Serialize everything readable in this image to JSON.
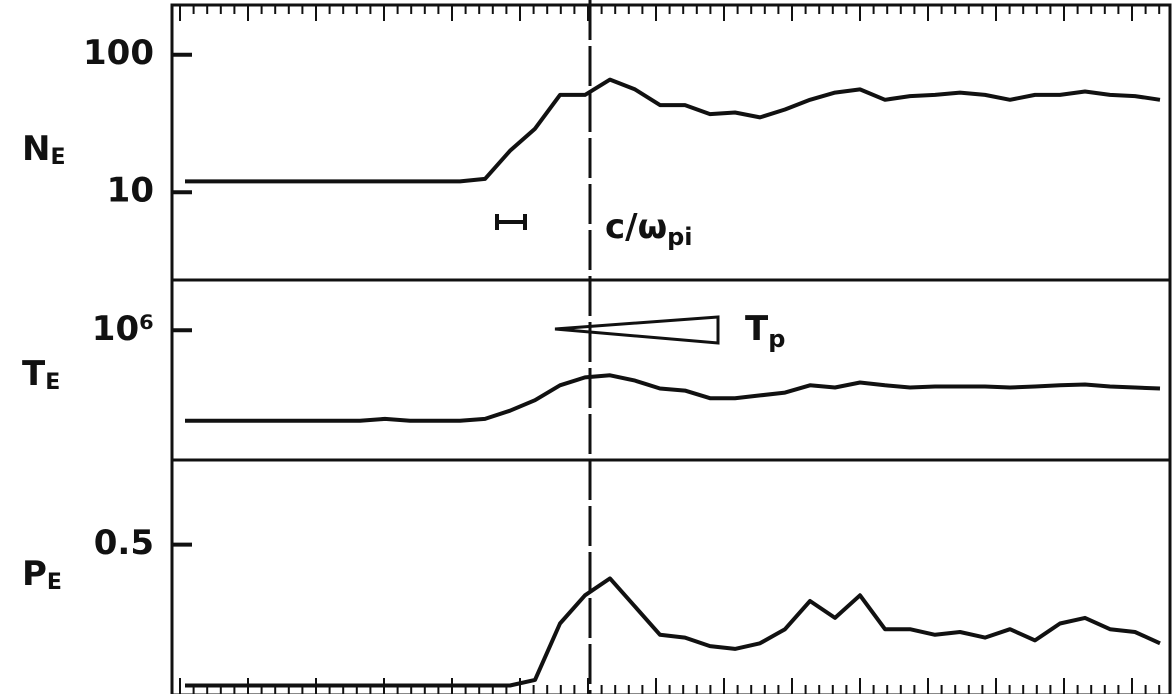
{
  "chart_data": [
    {
      "type": "line",
      "ylabel": "N",
      "ylabel_sub": "E",
      "log_scale": true,
      "ylim": [
        2.3,
        230
      ],
      "yticks": [
        10,
        100
      ],
      "annotation": "c/ω",
      "annotation_sub": "pi",
      "series": [
        {
          "color": "#111111",
          "values": [
            12,
            12,
            12,
            12,
            12,
            12,
            12,
            12,
            12,
            12,
            12,
            12,
            12.5,
            20,
            29,
            51,
            51,
            66,
            56,
            43,
            43,
            37,
            38,
            35,
            40,
            47,
            53,
            56,
            47,
            50,
            51,
            53,
            51,
            47,
            51,
            51,
            54,
            51,
            50,
            47
          ]
        }
      ]
    },
    {
      "type": "line",
      "ylabel": "T",
      "ylabel_sub": "E",
      "log_scale": true,
      "ylim": [
        370000,
        1470000
      ],
      "yticks": [
        {
          "value": 1000000,
          "label": "10⁶"
        }
      ],
      "annotation": "T",
      "annotation_sub": "p",
      "series": [
        {
          "color": "#111111",
          "values": [
            500000,
            500000,
            500000,
            500000,
            500000,
            500000,
            500000,
            500000,
            507000,
            500000,
            500000,
            500000,
            507000,
            540000,
            585000,
            656000,
            697000,
            708000,
            680000,
            640000,
            630000,
            594000,
            594000,
            607000,
            620000,
            656000,
            645000,
            670000,
            656000,
            645000,
            650000,
            650000,
            650000,
            645000,
            650000,
            656000,
            660000,
            650000,
            645000,
            640000
          ]
        }
      ]
    },
    {
      "type": "line",
      "ylabel": "P",
      "ylabel_sub": "E",
      "log_scale": false,
      "ylim": [
        -0.03,
        0.8
      ],
      "yticks": [
        0.5
      ],
      "series": [
        {
          "color": "#111111",
          "values": [
            0,
            0,
            0,
            0,
            0,
            0,
            0,
            0,
            0,
            0,
            0,
            0,
            0,
            0,
            0.02,
            0.22,
            0.32,
            0.38,
            0.28,
            0.18,
            0.17,
            0.14,
            0.13,
            0.15,
            0.2,
            0.3,
            0.24,
            0.32,
            0.2,
            0.2,
            0.18,
            0.19,
            0.17,
            0.2,
            0.16,
            0.22,
            0.24,
            0.2,
            0.19,
            0.15
          ]
        }
      ]
    }
  ]
}
